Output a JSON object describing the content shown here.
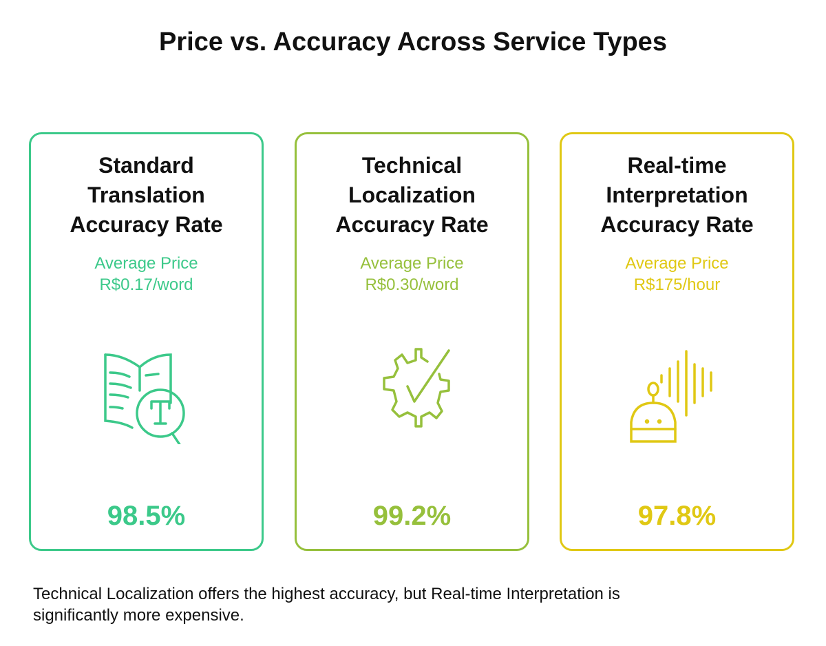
{
  "title": "Price vs. Accuracy Across Service Types",
  "cards": [
    {
      "title": "Standard Translation Accuracy Rate",
      "price_label": "Average Price",
      "price": "R$0.17/word",
      "accuracy": "98.5%",
      "color": "#3cc98a",
      "icon": "book-magnifier-icon"
    },
    {
      "title": "Technical Localization Accuracy Rate",
      "price_label": "Average Price",
      "price": "R$0.30/word",
      "accuracy": "99.2%",
      "color": "#96c03c",
      "icon": "gear-check-icon"
    },
    {
      "title": "Real-time Interpretation Accuracy Rate",
      "price_label": "Average Price",
      "price": "R$175/hour",
      "accuracy": "97.8%",
      "color": "#e0c814",
      "icon": "robot-sound-icon"
    }
  ],
  "footer": "Technical Localization offers the highest accuracy, but Real-time Interpretation is significantly more expensive."
}
